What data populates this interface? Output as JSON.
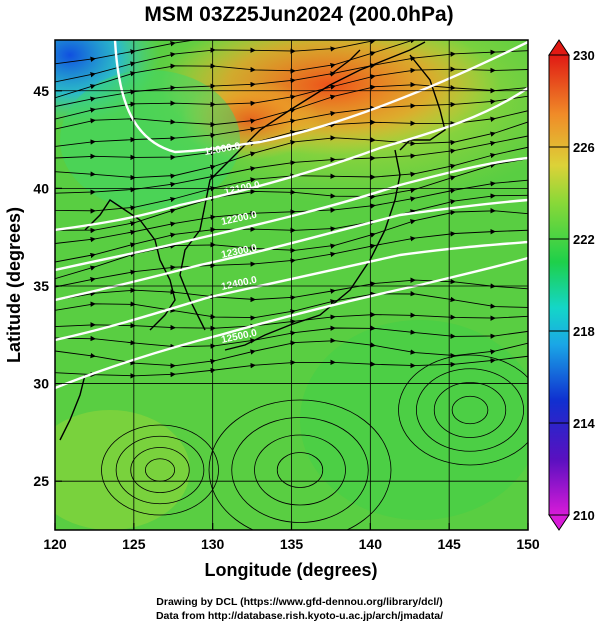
{
  "chart_data": {
    "type": "heatmap",
    "title": "MSM 03Z25Jun2024 (200.0hPa)",
    "xlabel": "Longitude (degrees)",
    "ylabel": "Latitude  (degrees)",
    "xlim": [
      120,
      150
    ],
    "ylim": [
      22.5,
      47.6
    ],
    "xticks": [
      120,
      125,
      130,
      135,
      140,
      145,
      150
    ],
    "yticks": [
      25,
      30,
      35,
      40,
      45
    ],
    "grid": true,
    "colorbar": {
      "min": 210,
      "max": 230,
      "ticks": [
        230,
        226,
        222,
        218,
        214,
        210
      ],
      "extend": "both"
    },
    "contours": {
      "labels": [
        "12000.0",
        "12100.0",
        "12200.0",
        "12300.0",
        "12400.0",
        "12500.0"
      ]
    }
  },
  "credits": {
    "line1": "Drawing by DCL (https://www.gfd-dennou.org/library/dcl/)",
    "line2": "Data from http://database.rish.kyoto-u.ac.jp/arch/jmadata/"
  },
  "colors": {
    "frame": "#000000",
    "contour": "#ffffff",
    "streamline": "#000000"
  }
}
